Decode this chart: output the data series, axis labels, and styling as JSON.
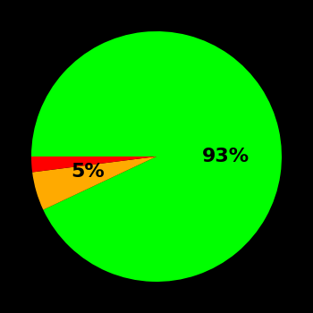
{
  "slices": [
    93,
    5,
    2
  ],
  "colors": [
    "#00ff00",
    "#ffaa00",
    "#ff0000"
  ],
  "labels": [
    "93%",
    "5%",
    ""
  ],
  "background_color": "#000000",
  "text_color": "#000000",
  "startangle": 180,
  "figsize": [
    3.5,
    3.5
  ],
  "dpi": 100,
  "label_positions": [
    [
      0.55,
      0.0
    ],
    [
      -0.55,
      -0.12
    ],
    [
      null,
      null
    ]
  ],
  "label_fontsize": 16
}
